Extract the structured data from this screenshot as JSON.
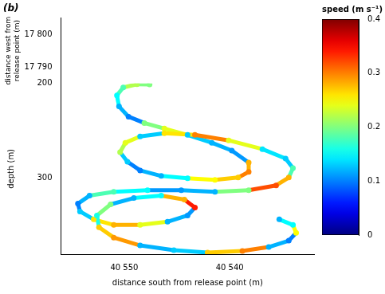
{
  "chart_data": {
    "type": "scatter",
    "panel_label": "(b)",
    "x_label": "distance south from release point (m)",
    "y_label": "depth (m)",
    "z_label": "distance west from release point (m)",
    "x": [
      40547.6,
      40548.8,
      40550.1,
      40550.7,
      40550.5,
      40549.6,
      40548.1,
      40546.2,
      40544.0,
      40541.7,
      40539.8,
      40538.2,
      40538.2,
      40539.2,
      40541.4,
      40544.0,
      40546.5,
      40548.5,
      40549.7,
      40550.4,
      40549.9,
      40548.5,
      40546.2,
      40543.3,
      40540.1,
      40536.9,
      40534.7,
      40534.0,
      40534.4,
      40535.6,
      40538.2,
      40541.4,
      40544.6,
      40547.8,
      40551.0,
      40553.3,
      40554.4,
      40554.2,
      40552.9,
      40551.0,
      40548.5,
      40545.9,
      40544.0,
      40543.3,
      40544.3,
      40546.5,
      40549.1,
      40551.3,
      40552.6,
      40552.4,
      40551.0,
      40548.5,
      40545.3,
      40542.1,
      40538.8,
      40536.3,
      40534.4,
      40533.7,
      40534.0,
      40535.3
    ],
    "values": [
      201.0,
      200.8,
      204.2,
      212.5,
      224.2,
      235.0,
      241.7,
      247.5,
      254.2,
      262.5,
      270.8,
      283.3,
      293.3,
      299.2,
      301.7,
      300.0,
      297.5,
      291.7,
      282.5,
      272.5,
      262.5,
      255.8,
      252.5,
      254.2,
      260.0,
      269.2,
      279.2,
      289.2,
      299.2,
      307.5,
      312.5,
      314.2,
      312.5,
      312.5,
      314.2,
      318.3,
      326.7,
      335.0,
      343.3,
      349.2,
      349.2,
      345.8,
      339.2,
      330.8,
      322.5,
      318.3,
      320.8,
      327.5,
      339.2,
      351.7,
      362.5,
      370.8,
      375.8,
      378.3,
      376.7,
      372.5,
      365.8,
      357.5,
      349.2,
      343.3
    ],
    "speed": [
      0.2,
      0.22,
      0.18,
      0.15,
      0.12,
      0.1,
      0.2,
      0.24,
      0.13,
      0.12,
      0.11,
      0.28,
      0.3,
      0.27,
      0.25,
      0.15,
      0.12,
      0.1,
      0.13,
      0.22,
      0.24,
      0.13,
      0.26,
      0.3,
      0.24,
      0.14,
      0.13,
      0.18,
      0.28,
      0.32,
      0.2,
      0.12,
      0.11,
      0.15,
      0.18,
      0.12,
      0.1,
      0.13,
      0.26,
      0.28,
      0.24,
      0.12,
      0.11,
      0.34,
      0.28,
      0.15,
      0.12,
      0.2,
      0.16,
      0.27,
      0.29,
      0.12,
      0.13,
      0.27,
      0.3,
      0.12,
      0.1,
      0.25,
      0.15,
      0.12
    ],
    "xlim": [
      40556,
      40532
    ],
    "xticks": [
      {
        "value": 40540,
        "label": "40 540"
      },
      {
        "value": 40550,
        "label": "40 550"
      }
    ],
    "ylim": [
      380,
      200
    ],
    "yticks": [
      200,
      300
    ],
    "zlim": [
      17790,
      17800
    ],
    "zticks": [
      {
        "value": 17790,
        "label": "17 790"
      },
      {
        "value": 17800,
        "label": "17 800"
      }
    ],
    "colorbar": {
      "label": "speed (m s⁻¹)",
      "range": [
        0,
        0.4
      ],
      "ticks": [
        0,
        0.1,
        0.2,
        0.3,
        0.4
      ]
    },
    "grid": false,
    "marker": "circle"
  }
}
